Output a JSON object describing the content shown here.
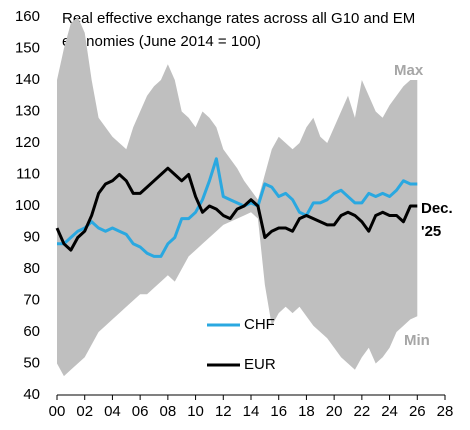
{
  "chart_data": {
    "type": "line",
    "title": [
      "Real effective exchange rates across all G10 and EM",
      "economies (June 2014 = 100)"
    ],
    "x": [
      2000,
      2000.5,
      2001,
      2001.5,
      2002,
      2002.5,
      2003,
      2003.5,
      2004,
      2004.5,
      2005,
      2005.5,
      2006,
      2006.5,
      2007,
      2007.5,
      2008,
      2008.5,
      2009,
      2009.5,
      2010,
      2010.5,
      2011,
      2011.5,
      2012,
      2012.5,
      2013,
      2013.5,
      2014,
      2014.5,
      2015,
      2015.5,
      2016,
      2016.5,
      2017,
      2017.5,
      2018,
      2018.5,
      2019,
      2019.5,
      2020,
      2020.5,
      2021,
      2021.5,
      2022,
      2022.5,
      2023,
      2023.5,
      2024,
      2024.5,
      2025,
      2025.5,
      2026
    ],
    "series": [
      {
        "name": "Max",
        "color": "#bfbfbf",
        "band": "upper",
        "values": [
          140,
          150,
          158,
          160,
          155,
          140,
          128,
          125,
          122,
          120,
          118,
          125,
          130,
          135,
          138,
          140,
          145,
          140,
          130,
          128,
          125,
          130,
          128,
          125,
          118,
          115,
          112,
          108,
          105,
          102,
          110,
          118,
          122,
          120,
          118,
          120,
          125,
          128,
          122,
          120,
          125,
          130,
          135,
          128,
          140,
          135,
          130,
          128,
          132,
          135,
          138,
          140,
          140
        ]
      },
      {
        "name": "Min",
        "color": "#bfbfbf",
        "band": "lower",
        "values": [
          50,
          46,
          48,
          50,
          52,
          56,
          60,
          62,
          64,
          66,
          68,
          70,
          72,
          72,
          74,
          76,
          78,
          76,
          80,
          84,
          86,
          88,
          90,
          92,
          94,
          95,
          96,
          97,
          98,
          96,
          75,
          62,
          66,
          68,
          66,
          68,
          65,
          62,
          60,
          58,
          55,
          52,
          50,
          48,
          52,
          55,
          50,
          52,
          55,
          60,
          62,
          64,
          65
        ]
      },
      {
        "name": "CHF",
        "color": "#2aa8e0",
        "values": [
          88,
          88,
          90,
          92,
          93,
          95,
          93,
          92,
          93,
          92,
          91,
          88,
          87,
          85,
          84,
          84,
          88,
          90,
          96,
          96,
          98,
          102,
          108,
          115,
          103,
          102,
          101,
          100,
          101,
          100,
          107,
          106,
          103,
          104,
          102,
          98,
          97,
          101,
          101,
          102,
          104,
          105,
          103,
          101,
          101,
          104,
          103,
          104,
          103,
          105,
          108,
          107,
          107
        ]
      },
      {
        "name": "EUR",
        "color": "#000000",
        "values": [
          93,
          88,
          86,
          90,
          92,
          97,
          104,
          107,
          108,
          110,
          108,
          104,
          104,
          106,
          108,
          110,
          112,
          110,
          108,
          110,
          103,
          98,
          100,
          99,
          97,
          96,
          99,
          100,
          102,
          100,
          90,
          92,
          93,
          93,
          92,
          96,
          97,
          96,
          95,
          94,
          94,
          97,
          98,
          97,
          95,
          92,
          97,
          98,
          97,
          97,
          95,
          100,
          100
        ]
      }
    ],
    "annotations": [
      "Dec.",
      "'25"
    ],
    "xlim": [
      2000,
      2028
    ],
    "xticks": [
      {
        "value": 2000,
        "label": "00"
      },
      {
        "value": 2002,
        "label": "02"
      },
      {
        "value": 2004,
        "label": "04"
      },
      {
        "value": 2006,
        "label": "06"
      },
      {
        "value": 2008,
        "label": "08"
      },
      {
        "value": 2010,
        "label": "10"
      },
      {
        "value": 2012,
        "label": "12"
      },
      {
        "value": 2014,
        "label": "14"
      },
      {
        "value": 2016,
        "label": "16"
      },
      {
        "value": 2018,
        "label": "18"
      },
      {
        "value": 2020,
        "label": "20"
      },
      {
        "value": 2022,
        "label": "22"
      },
      {
        "value": 2024,
        "label": "24"
      },
      {
        "value": 2026,
        "label": "26"
      },
      {
        "value": 2028,
        "label": "28"
      }
    ],
    "ylim": [
      40,
      160
    ],
    "yticks": [
      40,
      50,
      60,
      70,
      80,
      90,
      100,
      110,
      120,
      130,
      140,
      150,
      160
    ],
    "grid": false
  }
}
